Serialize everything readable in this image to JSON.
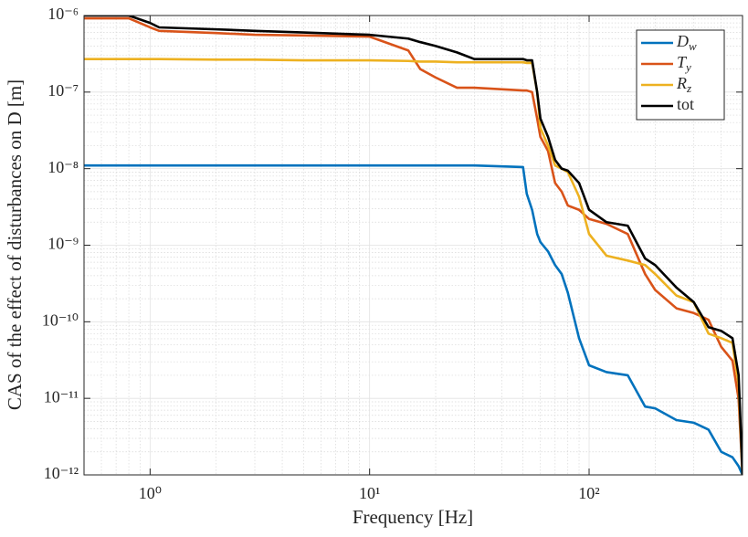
{
  "chart_data": {
    "type": "line",
    "xlabel": "Frequency [Hz]",
    "ylabel": "CAS of the effect of disturbances on D [m]",
    "xscale": "log",
    "yscale": "log",
    "xlim": [
      0.5,
      500
    ],
    "ylim": [
      1e-12,
      1e-06
    ],
    "xticks": [
      {
        "value": 1,
        "label": "10⁰"
      },
      {
        "value": 10,
        "label": "10¹"
      },
      {
        "value": 100,
        "label": "10²"
      }
    ],
    "yticks": [
      {
        "value": 1e-12,
        "label": "10⁻¹²"
      },
      {
        "value": 1e-11,
        "label": "10⁻¹¹"
      },
      {
        "value": 1e-10,
        "label": "10⁻¹⁰"
      },
      {
        "value": 1e-09,
        "label": "10⁻⁹"
      },
      {
        "value": 1e-08,
        "label": "10⁻⁸"
      },
      {
        "value": 1e-07,
        "label": "10⁻⁷"
      },
      {
        "value": 1e-06,
        "label": "10⁻⁶"
      }
    ],
    "grid": true,
    "minor_grid": true,
    "legend": "upper right",
    "x": [
      0.5,
      0.8,
      1.0,
      1.1,
      2,
      3,
      5,
      10,
      15,
      17,
      20,
      25,
      30,
      50,
      52,
      55,
      58,
      60,
      65,
      70,
      75,
      80,
      90,
      100,
      120,
      150,
      180,
      200,
      250,
      300,
      350,
      400,
      450,
      480,
      500
    ],
    "series": [
      {
        "name": "D_w",
        "color": "#0072bd",
        "values": [
          1.1e-08,
          1.1e-08,
          1.1e-08,
          1.1e-08,
          1.1e-08,
          1.1e-08,
          1.1e-08,
          1.1e-08,
          1.1e-08,
          1.1e-08,
          1.1e-08,
          1.1e-08,
          1.1e-08,
          1.05e-08,
          4.7e-09,
          2.9e-09,
          1.4e-09,
          1.1e-09,
          8.3e-10,
          5.5e-10,
          4.2e-10,
          2.4e-10,
          6.1e-11,
          2.7e-11,
          2.2e-11,
          2e-11,
          7.8e-12,
          7.4e-12,
          5.2e-12,
          4.8e-12,
          3.9e-12,
          2e-12,
          1.7e-12,
          1.3e-12,
          1e-12
        ]
      },
      {
        "name": "T_y",
        "color": "#d95319",
        "values": [
          9.2e-07,
          9.2e-07,
          7e-07,
          6.3e-07,
          5.9e-07,
          5.6e-07,
          5.5e-07,
          5.3e-07,
          3.5e-07,
          2e-07,
          1.55e-07,
          1.14e-07,
          1.14e-07,
          1.05e-07,
          1.05e-07,
          1e-07,
          4.5e-08,
          2.6e-08,
          1.7e-08,
          6.5e-09,
          5e-09,
          3.3e-09,
          2.9e-09,
          2.2e-09,
          1.9e-09,
          1.4e-09,
          4.2e-10,
          2.6e-10,
          1.5e-10,
          1.3e-10,
          1.06e-10,
          4.7e-11,
          3.1e-11,
          9.8e-12,
          1e-12
        ]
      },
      {
        "name": "R_z",
        "color": "#edb120",
        "values": [
          2.7e-07,
          2.7e-07,
          2.7e-07,
          2.7e-07,
          2.65e-07,
          2.65e-07,
          2.6e-07,
          2.6e-07,
          2.55e-07,
          2.5e-07,
          2.5e-07,
          2.45e-07,
          2.45e-07,
          2.45e-07,
          2.4e-07,
          2.4e-07,
          1e-07,
          3.4e-08,
          2e-08,
          1.1e-08,
          1e-08,
          9e-09,
          4.3e-09,
          1.4e-09,
          7.3e-10,
          6.3e-10,
          5.5e-10,
          4.2e-10,
          2.2e-10,
          1.8e-10,
          7e-11,
          6.1e-11,
          5.3e-11,
          1.5e-11,
          1e-12
        ]
      },
      {
        "name": "tot",
        "color": "#000000",
        "values": [
          1e-06,
          1e-06,
          8e-07,
          7e-07,
          6.6e-07,
          6.3e-07,
          6e-07,
          5.6e-07,
          5e-07,
          4.5e-07,
          4e-07,
          3.3e-07,
          2.7e-07,
          2.7e-07,
          2.6e-07,
          2.6e-07,
          1e-07,
          4.5e-08,
          2.6e-08,
          1.3e-08,
          1e-08,
          9.4e-09,
          6.5e-09,
          2.9e-09,
          2e-09,
          1.8e-09,
          6.7e-10,
          5.5e-10,
          2.8e-10,
          1.8e-10,
          8.5e-11,
          7.6e-11,
          6.1e-11,
          2e-11,
          1e-12
        ]
      }
    ]
  }
}
